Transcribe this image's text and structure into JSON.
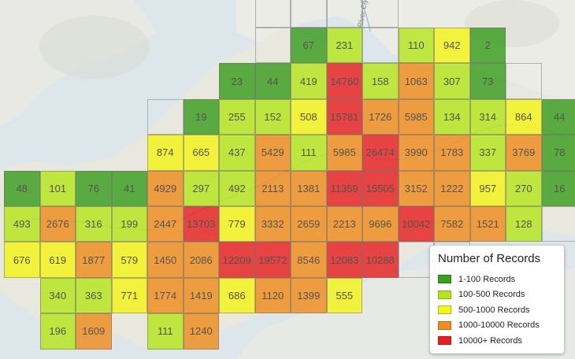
{
  "legend": {
    "title": "Number of Records",
    "items": [
      {
        "label": "1-100 Records",
        "color": "#3a9e1f"
      },
      {
        "label": "100-500 Records",
        "color": "#b5e61d"
      },
      {
        "label": "500-1000 Records",
        "color": "#f5f51a"
      },
      {
        "label": "1000-10000 Records",
        "color": "#f08c1e"
      },
      {
        "label": "10000+ Records",
        "color": "#e62020"
      }
    ]
  },
  "basemap_labels": {
    "river": "River Clyde"
  },
  "grid": {
    "rows": [
      [
        null,
        null,
        null,
        null,
        null,
        null,
        null,
        null,
        67,
        231,
        null,
        110,
        942,
        2,
        null,
        null
      ],
      [
        null,
        null,
        null,
        null,
        null,
        null,
        23,
        44,
        419,
        14760,
        158,
        1063,
        307,
        73,
        null,
        null
      ],
      [
        null,
        null,
        null,
        null,
        null,
        19,
        255,
        152,
        508,
        15781,
        1726,
        5985,
        134,
        314,
        864,
        44
      ],
      [
        null,
        null,
        null,
        null,
        874,
        665,
        437,
        5429,
        111,
        5985,
        26474,
        3990,
        1783,
        337,
        3769,
        78
      ],
      [
        48,
        101,
        76,
        41,
        4929,
        297,
        492,
        2113,
        1381,
        11359,
        15505,
        3152,
        1222,
        957,
        270,
        16
      ],
      [
        493,
        2676,
        316,
        199,
        2447,
        13703,
        779,
        3332,
        2659,
        2213,
        9696,
        10042,
        7582,
        1521,
        128,
        null
      ],
      [
        676,
        619,
        1877,
        579,
        1450,
        2086,
        12209,
        19572,
        8546,
        12083,
        10288,
        null,
        null,
        null,
        null,
        null
      ],
      [
        null,
        340,
        363,
        771,
        1774,
        1419,
        686,
        1120,
        1399,
        555,
        null,
        null,
        null,
        null,
        null,
        null
      ],
      [
        null,
        196,
        1609,
        null,
        111,
        1240,
        null,
        null,
        null,
        null,
        null,
        null,
        null,
        null,
        null,
        null
      ]
    ]
  }
}
